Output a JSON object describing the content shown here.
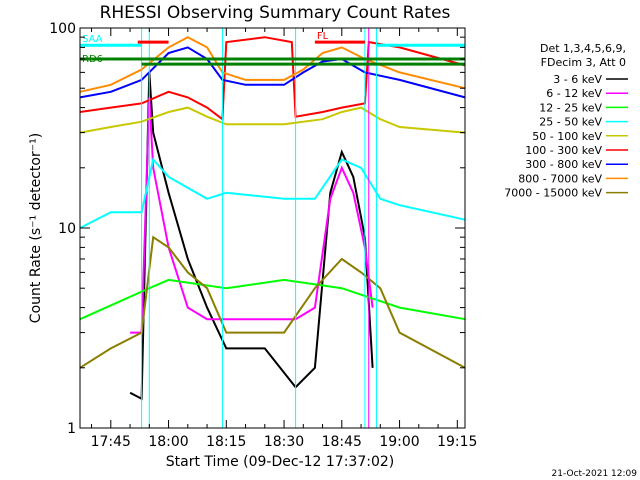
{
  "chart_data": {
    "type": "line",
    "title": "RHESSI Observing Summary Count Rates",
    "xlabel": "Start Time (09-Dec-12 17:37:02)",
    "ylabel": "Count Rate (s⁻¹ detector⁻¹)",
    "yscale": "log",
    "ylim": [
      1,
      100
    ],
    "xlim": [
      "17:37",
      "19:17"
    ],
    "x_ticks": [
      "17:45",
      "18:00",
      "18:15",
      "18:30",
      "18:45",
      "19:00",
      "19:15"
    ],
    "y_ticks": [
      "1",
      "10",
      "100"
    ],
    "legend_header": [
      "Det 1,3,4,5,6,9,",
      "FDecim 3, Att 0"
    ],
    "legend_position": "right",
    "annotations": [
      "FL",
      "SAA",
      "RD6"
    ],
    "footer": "21-Oct-2021 12:09",
    "grid": false,
    "series": [
      {
        "name": "3 - 6 keV",
        "color": "#000000",
        "x": [
          "17:50",
          "17:53",
          "17:55",
          "17:56",
          "18:00",
          "18:05",
          "18:10",
          "18:15",
          "18:25",
          "18:33",
          "18:38",
          "18:42",
          "18:45",
          "18:48",
          "18:51",
          "18:53"
        ],
        "values": [
          1.5,
          1.4,
          60,
          30,
          15,
          7,
          4,
          2.5,
          2.5,
          1.6,
          2,
          15,
          24,
          18,
          9,
          2
        ]
      },
      {
        "name": "6 - 12 keV",
        "color": "#ff00ff",
        "x": [
          "17:50",
          "17:53",
          "17:55",
          "17:56",
          "18:00",
          "18:05",
          "18:10",
          "18:15",
          "18:25",
          "18:33",
          "18:38",
          "18:42",
          "18:45",
          "18:48",
          "18:51",
          "18:53"
        ],
        "values": [
          3,
          3,
          45,
          20,
          8,
          4,
          3.5,
          3.5,
          3.5,
          3.5,
          4,
          14,
          20,
          15,
          8,
          4
        ]
      },
      {
        "name": "12 - 25 keV",
        "color": "#00ff00",
        "x": [
          "17:37",
          "17:55",
          "18:00",
          "18:15",
          "18:30",
          "18:45",
          "19:00",
          "19:17"
        ],
        "values": [
          3.5,
          5,
          5.5,
          5,
          5.5,
          5,
          4,
          3.5
        ]
      },
      {
        "name": "25 - 50 keV",
        "color": "#00ffff",
        "x": [
          "17:37",
          "17:45",
          "17:53",
          "17:56",
          "18:00",
          "18:10",
          "18:15",
          "18:30",
          "18:38",
          "18:45",
          "18:50",
          "18:55",
          "19:00",
          "19:17"
        ],
        "values": [
          10,
          12,
          12,
          22,
          18,
          14,
          15,
          14,
          14,
          22,
          20,
          14,
          13,
          11
        ]
      },
      {
        "name": "50 - 100 keV",
        "color": "#c8c800",
        "x": [
          "17:37",
          "17:45",
          "17:53",
          "18:00",
          "18:05",
          "18:10",
          "18:15",
          "18:30",
          "18:40",
          "18:45",
          "18:50",
          "18:55",
          "19:00",
          "19:17"
        ],
        "values": [
          30,
          32,
          34,
          38,
          40,
          36,
          33,
          33,
          35,
          38,
          40,
          35,
          32,
          30
        ]
      },
      {
        "name": "100 - 300 keV",
        "color": "#ff0000",
        "x": [
          "17:37",
          "17:45",
          "17:53",
          "18:00",
          "18:05",
          "18:10",
          "18:14",
          "18:15",
          "18:25",
          "18:32",
          "18:33",
          "18:40",
          "18:45",
          "18:51",
          "18:52",
          "19:00",
          "19:17"
        ],
        "values": [
          38,
          40,
          42,
          48,
          45,
          40,
          35,
          85,
          90,
          85,
          36,
          38,
          40,
          42,
          85,
          80,
          65
        ]
      },
      {
        "name": "300 - 800 keV",
        "color": "#0000ff",
        "x": [
          "17:37",
          "17:45",
          "17:53",
          "18:00",
          "18:05",
          "18:10",
          "18:14",
          "18:20",
          "18:30",
          "18:35",
          "18:40",
          "18:45",
          "18:51",
          "19:00",
          "19:17"
        ],
        "values": [
          45,
          48,
          55,
          75,
          80,
          70,
          55,
          52,
          52,
          60,
          68,
          70,
          60,
          55,
          45
        ]
      },
      {
        "name": "800 - 7000 keV",
        "color": "#ff8c00",
        "x": [
          "17:37",
          "17:45",
          "17:53",
          "18:00",
          "18:05",
          "18:10",
          "18:14",
          "18:20",
          "18:30",
          "18:35",
          "18:40",
          "18:45",
          "18:51",
          "19:00",
          "19:17"
        ],
        "values": [
          48,
          52,
          62,
          80,
          90,
          80,
          60,
          55,
          55,
          62,
          75,
          80,
          70,
          60,
          50
        ]
      },
      {
        "name": "7000 - 15000 keV",
        "color": "#8b7d00",
        "x": [
          "17:37",
          "17:45",
          "17:53",
          "17:56",
          "18:00",
          "18:05",
          "18:10",
          "18:15",
          "18:30",
          "18:38",
          "18:45",
          "18:50",
          "18:55",
          "19:00",
          "19:17"
        ],
        "values": [
          2,
          2.5,
          3,
          9,
          8,
          6,
          5,
          3,
          3,
          5,
          7,
          6,
          5,
          3,
          2
        ]
      }
    ],
    "flags": [
      {
        "label": "FL",
        "color": "#ff0000",
        "x": [
          "17:52",
          "18:00"
        ],
        "level": 85
      },
      {
        "label": "FL",
        "color": "#ff0000",
        "x": [
          "18:38",
          "18:51"
        ],
        "level": 85
      },
      {
        "label": "SAA",
        "color": "#00ffff",
        "x": [
          "17:37",
          "17:53"
        ],
        "level": 82
      },
      {
        "label": "SAA",
        "color": "#00ffff",
        "x": [
          "18:54",
          "19:17"
        ],
        "level": 82
      },
      {
        "label": "RD6",
        "color": "#008000",
        "x": [
          "17:37",
          "19:17"
        ],
        "level": 70
      },
      {
        "label": "RD6",
        "color": "#008000",
        "x": [
          "17:53",
          "19:17"
        ],
        "level": 66
      }
    ],
    "vertical_markers": [
      {
        "color": "#00ffff",
        "x": [
          "17:53",
          "17:55",
          "18:14",
          "18:33",
          "18:51",
          "18:54"
        ]
      },
      {
        "color": "#ff00ff",
        "x": [
          "18:52"
        ]
      }
    ]
  }
}
